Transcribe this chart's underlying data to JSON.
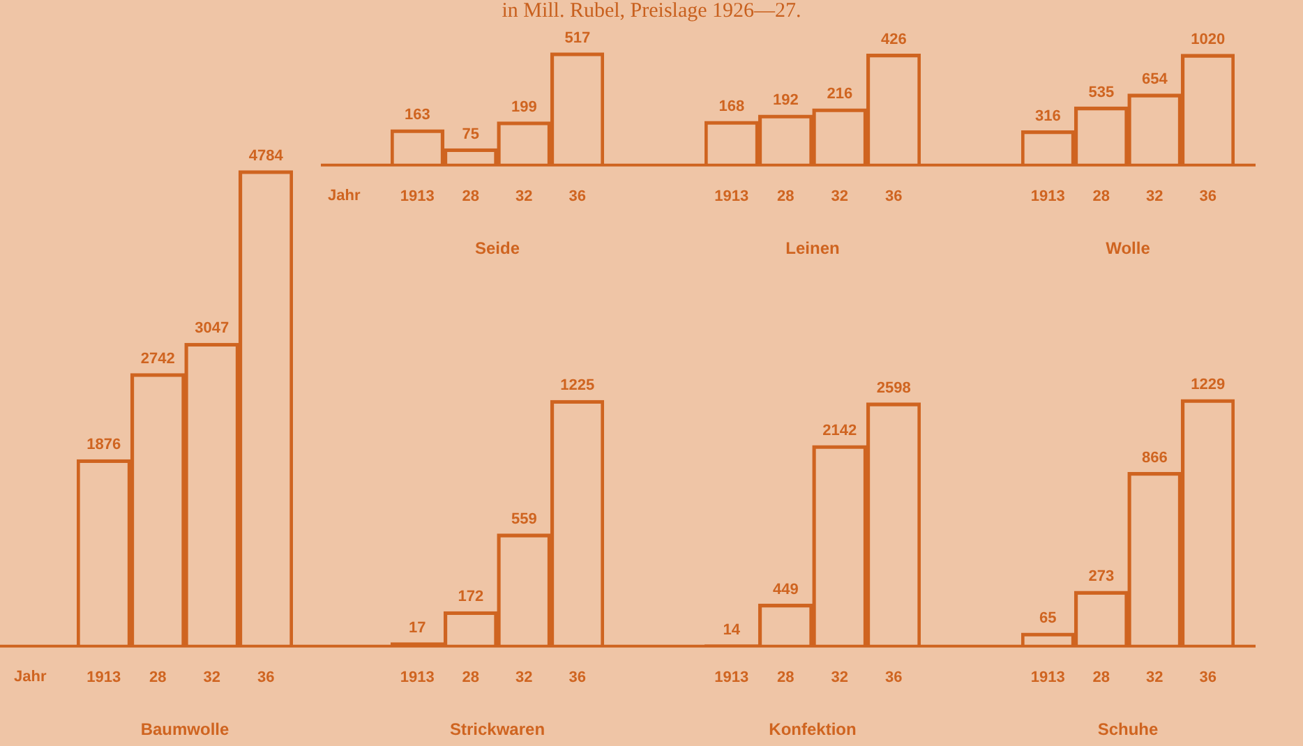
{
  "chart_data": [
    {
      "type": "bar",
      "title": "Baumwolle",
      "xlabel": "Jahr",
      "annotations": [
        "in Mill. Rubel, Preislage 1926—27."
      ],
      "categories": [
        "1913",
        "28",
        "32",
        "36"
      ],
      "values": [
        1876,
        2742,
        3047,
        4784
      ],
      "color": "#cf6420",
      "tick_labels": "x",
      "data_labels": true,
      "grid": false,
      "legend": false
    },
    {
      "type": "bar",
      "title": "Seide",
      "xlabel": "Jahr",
      "categories": [
        "1913",
        "28",
        "32",
        "36"
      ],
      "values": [
        163,
        75,
        199,
        517
      ],
      "color": "#cf6420",
      "tick_labels": "x",
      "data_labels": true,
      "grid": false,
      "legend": false
    },
    {
      "type": "bar",
      "title": "Leinen",
      "categories": [
        "1913",
        "28",
        "32",
        "36"
      ],
      "values": [
        168,
        192,
        216,
        426
      ],
      "color": "#cf6420",
      "tick_labels": "x",
      "data_labels": true,
      "grid": false,
      "legend": false
    },
    {
      "type": "bar",
      "title": "Wolle",
      "categories": [
        "1913",
        "28",
        "32",
        "36"
      ],
      "values": [
        316,
        535,
        654,
        1020
      ],
      "color": "#cf6420",
      "tick_labels": "x",
      "data_labels": true,
      "grid": false,
      "legend": false
    },
    {
      "type": "bar",
      "title": "Strickwaren",
      "categories": [
        "1913",
        "28",
        "32",
        "36"
      ],
      "values": [
        17,
        172,
        559,
        1225
      ],
      "color": "#cf6420",
      "tick_labels": "x",
      "data_labels": true,
      "grid": false,
      "legend": false
    },
    {
      "type": "bar",
      "title": "Konfektion",
      "categories": [
        "1913",
        "28",
        "32",
        "36"
      ],
      "values": [
        14,
        449,
        2142,
        2598
      ],
      "color": "#cf6420",
      "tick_labels": "x",
      "data_labels": true,
      "grid": false,
      "legend": false
    },
    {
      "type": "bar",
      "title": "Schuhe",
      "categories": [
        "1913",
        "28",
        "32",
        "36"
      ],
      "values": [
        65,
        273,
        866,
        1229
      ],
      "color": "#cf6420",
      "tick_labels": "x",
      "data_labels": true,
      "grid": false,
      "legend": false
    }
  ]
}
